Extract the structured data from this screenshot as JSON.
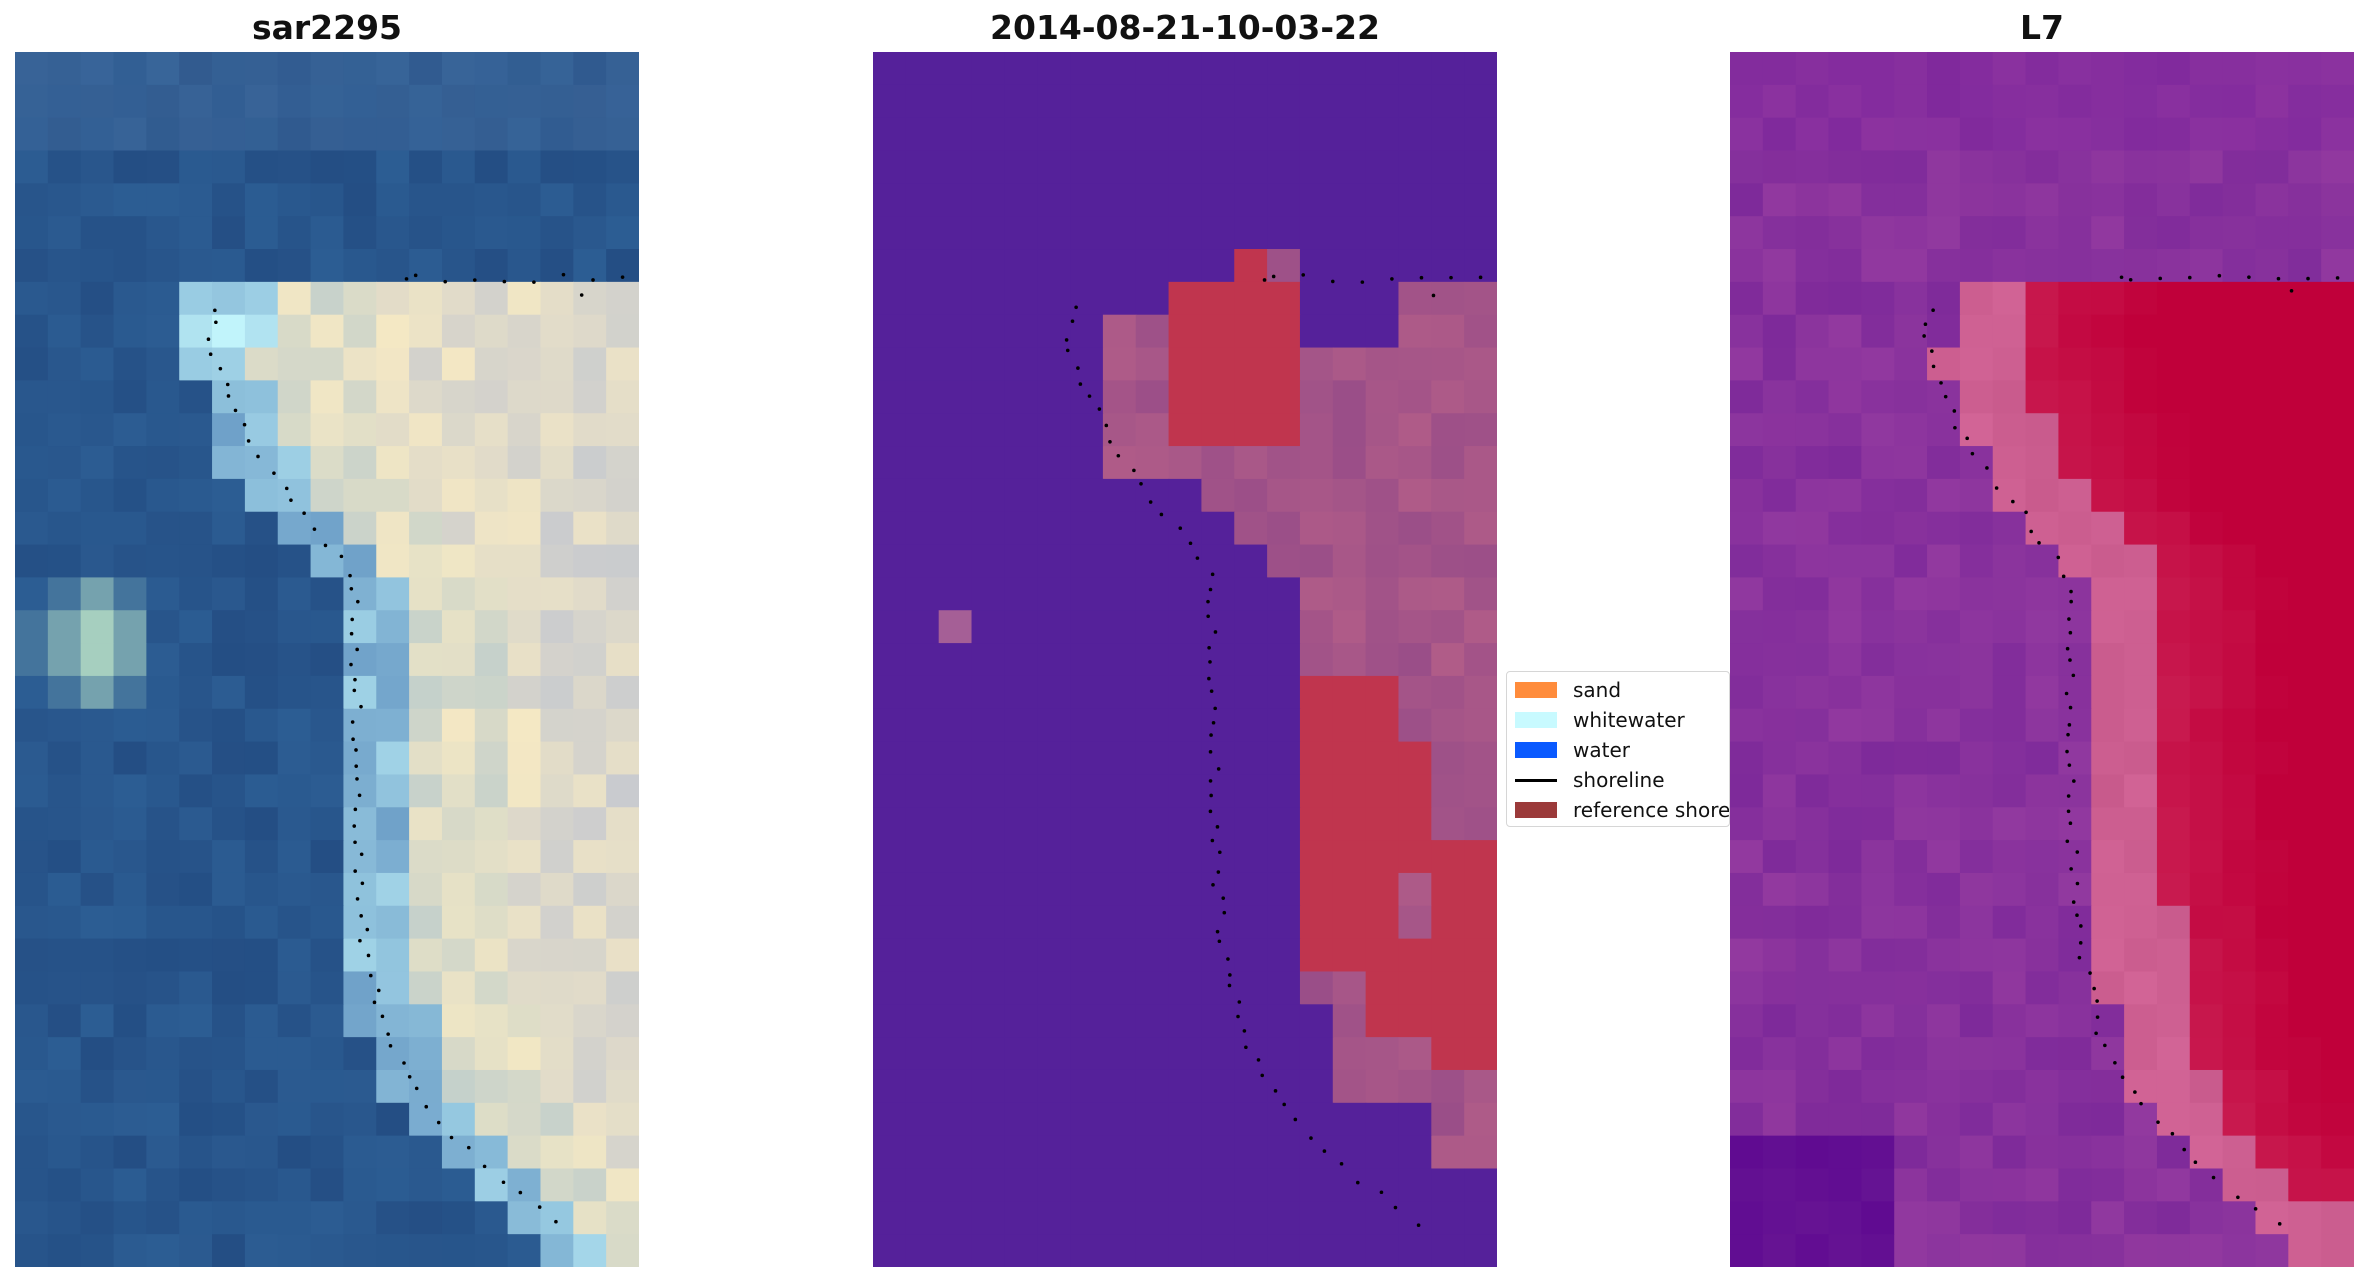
{
  "panels": [
    {
      "title": "sar2295"
    },
    {
      "title": "2014-08-21-10-03-22"
    },
    {
      "title": "L7"
    }
  ],
  "legend": {
    "items": [
      {
        "label": "sand",
        "kind": "patch",
        "color": "#ff8c3c"
      },
      {
        "label": "whitewater",
        "kind": "patch",
        "color": "#c8faff"
      },
      {
        "label": "water",
        "kind": "patch",
        "color": "#0a5aff"
      },
      {
        "label": "shoreline",
        "kind": "line",
        "color": "#000000"
      },
      {
        "label": "reference shoreline",
        "kind": "patch",
        "color": "#9b3a3a"
      }
    ]
  },
  "chart_data": [
    {
      "type": "heatmap",
      "title": "sar2295",
      "colors": {
        "water": "#2c5d93",
        "sand_light": "#f4e8c4",
        "whitewater": "#c8fbff"
      }
    },
    {
      "type": "heatmap",
      "title": "2014-08-21-10-03-22",
      "colors": {
        "background": "#55219a",
        "land": "#9a4e88",
        "sand_overlay": "#c0354e"
      }
    },
    {
      "type": "heatmap",
      "title": "L7",
      "colors": {
        "low": "#5a10a0",
        "mid": "#8e3aa8",
        "high": "#c0003a"
      }
    }
  ]
}
